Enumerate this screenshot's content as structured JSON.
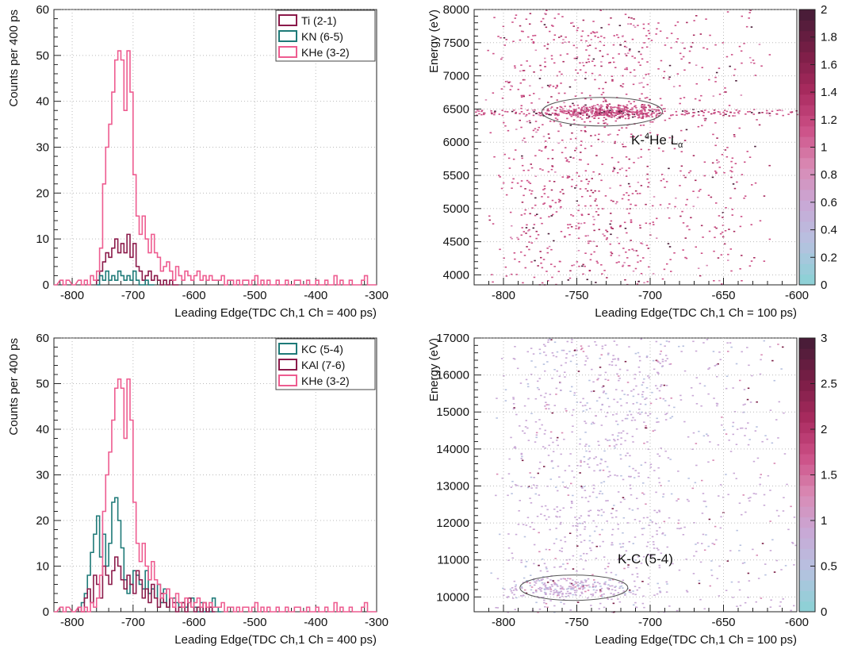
{
  "colors": {
    "pink": "#ee5c90",
    "maroon": "#8b1a4a",
    "teal": "#1e7a78",
    "palette": [
      "#8fd0d6",
      "#b7c1e0",
      "#c9a8d6",
      "#d98ab4",
      "#cc4f86",
      "#a82a5e",
      "#7a1e46",
      "#4a1c38"
    ]
  },
  "chart_data": [
    {
      "type": "line",
      "panel": "top-left",
      "xlabel": "Leading Edge(TDC Ch,1 Ch = 400 ps)",
      "ylabel": "Counts per 400 ps",
      "xlim": [
        -830,
        -300
      ],
      "ylim": [
        0,
        60
      ],
      "xticks": [
        -800,
        -700,
        -600,
        -500,
        -400,
        -300
      ],
      "yticks": [
        0,
        10,
        20,
        30,
        40,
        50,
        60
      ],
      "legend_position": "top-right",
      "series": [
        {
          "name": "Ti (2-1)",
          "color": "maroon",
          "x": [
            -760,
            -755,
            -750,
            -745,
            -740,
            -735,
            -730,
            -725,
            -720,
            -715,
            -710,
            -705,
            -700,
            -695,
            -690,
            -685,
            -680,
            -675,
            -670,
            -665,
            -660,
            -655,
            -650,
            -645,
            -640,
            -635,
            -630
          ],
          "values": [
            1,
            3,
            5,
            7,
            6,
            8,
            10,
            7,
            9,
            7,
            11,
            6,
            9,
            4,
            3,
            1,
            2,
            3,
            1,
            2,
            1,
            0,
            1,
            0,
            1,
            0,
            0
          ]
        },
        {
          "name": "KN (6-5)",
          "color": "teal",
          "x": [
            -760,
            -755,
            -750,
            -745,
            -740,
            -735,
            -730,
            -725,
            -720,
            -715,
            -710,
            -705,
            -700,
            -695,
            -690,
            -685,
            -680,
            -675,
            -670
          ],
          "values": [
            0,
            2,
            1,
            3,
            1,
            2,
            1,
            3,
            2,
            1,
            2,
            1,
            3,
            1,
            0,
            0,
            1,
            0,
            0
          ]
        },
        {
          "name": "KHe (3-2)",
          "color": "pink",
          "x": [
            -830,
            -820,
            -815,
            -810,
            -800,
            -790,
            -785,
            -780,
            -775,
            -770,
            -765,
            -760,
            -755,
            -750,
            -745,
            -740,
            -735,
            -730,
            -725,
            -720,
            -715,
            -710,
            -705,
            -700,
            -695,
            -690,
            -685,
            -680,
            -675,
            -670,
            -665,
            -660,
            -655,
            -650,
            -645,
            -640,
            -635,
            -630,
            -625,
            -620,
            -615,
            -610,
            -605,
            -600,
            -595,
            -590,
            -585,
            -580,
            -575,
            -570,
            -565,
            -560,
            -555,
            -550,
            -545,
            -540,
            -535,
            -530,
            -525,
            -520,
            -515,
            -510,
            -505,
            -500,
            -495,
            -490,
            -485,
            -480,
            -475,
            -470,
            -465,
            -460,
            -455,
            -450,
            -445,
            -440,
            -435,
            -430,
            -425,
            -420,
            -415,
            -410,
            -405,
            -400,
            -395,
            -390,
            -385,
            -380,
            -375,
            -370,
            -365,
            -360,
            -355,
            -350,
            -345,
            -340,
            -335,
            -330,
            -325,
            -320,
            -315,
            -310,
            -305
          ],
          "values": [
            0,
            1,
            0,
            1,
            0,
            1,
            0,
            1,
            0,
            2,
            1,
            3,
            8,
            22,
            30,
            35,
            42,
            49,
            51,
            49,
            38,
            51,
            42,
            24,
            15,
            11,
            15,
            10,
            7,
            11,
            7,
            6,
            3,
            4,
            5,
            3,
            1,
            4,
            2,
            1,
            3,
            2,
            1,
            2,
            3,
            1,
            2,
            1,
            2,
            1,
            1,
            1,
            2,
            0,
            1,
            1,
            0,
            1,
            0,
            1,
            1,
            0,
            1,
            2,
            0,
            1,
            0,
            1,
            0,
            0,
            1,
            0,
            0,
            1,
            0,
            0,
            1,
            1,
            0,
            0,
            1,
            0,
            0,
            1,
            0,
            0,
            1,
            0,
            0,
            2,
            0,
            1,
            0,
            0,
            1,
            0,
            0,
            0,
            1,
            2,
            0,
            0,
            0
          ]
        }
      ]
    },
    {
      "type": "heatmap",
      "panel": "top-right",
      "xlabel": "Leading Edge(TDC Ch,1 Ch = 100 ps)",
      "ylabel": "Energy (eV)",
      "xlim": [
        -820,
        -600
      ],
      "ylim": [
        3850,
        8000
      ],
      "xticks": [
        -800,
        -750,
        -700,
        -650,
        -600
      ],
      "yticks": [
        4000,
        4500,
        5000,
        5500,
        6000,
        6500,
        7000,
        7500,
        8000
      ],
      "zlim": [
        0,
        2
      ],
      "zticks": [
        "0",
        "0.2",
        "0.4",
        "0.6",
        "0.8",
        "1",
        "1.2",
        "1.4",
        "1.6",
        "1.8",
        "2"
      ],
      "annotation": {
        "text_main": "K-",
        "sup": "4",
        "text_tail": "He L",
        "sub": "α",
        "ellipse_center": [
          -730,
          6460
        ]
      },
      "seed": 13
    },
    {
      "type": "line",
      "panel": "bottom-left",
      "xlabel": "Leading Edge(TDC Ch,1 Ch = 400 ps)",
      "ylabel": "Counts per 400 ps",
      "xlim": [
        -830,
        -300
      ],
      "ylim": [
        0,
        60
      ],
      "xticks": [
        -800,
        -700,
        -600,
        -500,
        -400,
        -300
      ],
      "yticks": [
        0,
        10,
        20,
        30,
        40,
        50,
        60
      ],
      "legend_position": "top-right",
      "series": [
        {
          "name": "KC (5-4)",
          "color": "teal",
          "x": [
            -790,
            -785,
            -780,
            -775,
            -770,
            -765,
            -760,
            -755,
            -750,
            -745,
            -740,
            -735,
            -730,
            -725,
            -720,
            -715,
            -710,
            -705,
            -700,
            -695,
            -690,
            -685,
            -680,
            -675,
            -670,
            -665,
            -660,
            -655,
            -650,
            -645,
            -640,
            -635,
            -630,
            -625,
            -620,
            -615,
            -610,
            -605,
            -600,
            -595,
            -590,
            -585,
            -580,
            -575,
            -570,
            -565,
            -560
          ],
          "values": [
            1,
            2,
            4,
            8,
            13,
            17,
            21,
            12,
            17,
            10,
            15,
            24,
            25,
            20,
            14,
            7,
            4,
            6,
            9,
            8,
            6,
            5,
            9,
            4,
            5,
            3,
            6,
            2,
            5,
            1,
            3,
            3,
            2,
            1,
            2,
            1,
            2,
            3,
            1,
            0,
            2,
            0,
            1,
            0,
            3,
            1,
            0
          ]
        },
        {
          "name": "KAl (7-6)",
          "color": "maroon",
          "x": [
            -790,
            -785,
            -780,
            -775,
            -770,
            -765,
            -760,
            -755,
            -750,
            -745,
            -740,
            -735,
            -730,
            -725,
            -720,
            -715,
            -710,
            -705,
            -700,
            -695,
            -690,
            -685,
            -680,
            -675,
            -670,
            -665,
            -660,
            -655,
            -650,
            -645,
            -640,
            -635,
            -630,
            -625,
            -620,
            -615,
            -610,
            -605,
            -600,
            -595,
            -590,
            -585,
            -580,
            -575,
            -570
          ],
          "values": [
            1,
            0,
            3,
            5,
            2,
            8,
            6,
            3,
            10,
            8,
            6,
            9,
            12,
            10,
            7,
            5,
            8,
            6,
            4,
            9,
            7,
            3,
            5,
            2,
            6,
            3,
            1,
            4,
            2,
            1,
            3,
            2,
            0,
            1,
            2,
            0,
            3,
            1,
            0,
            1,
            0,
            2,
            0,
            1,
            0
          ]
        },
        {
          "name": "KHe (3-2)",
          "color": "pink",
          "x": [
            -830,
            -820,
            -815,
            -810,
            -800,
            -790,
            -785,
            -780,
            -775,
            -770,
            -765,
            -760,
            -755,
            -750,
            -745,
            -740,
            -735,
            -730,
            -725,
            -720,
            -715,
            -710,
            -705,
            -700,
            -695,
            -690,
            -685,
            -680,
            -675,
            -670,
            -665,
            -660,
            -655,
            -650,
            -645,
            -640,
            -635,
            -630,
            -625,
            -620,
            -615,
            -610,
            -605,
            -600,
            -595,
            -590,
            -585,
            -580,
            -575,
            -570,
            -565,
            -560,
            -555,
            -550,
            -545,
            -540,
            -535,
            -530,
            -525,
            -520,
            -515,
            -510,
            -505,
            -500,
            -495,
            -490,
            -485,
            -480,
            -475,
            -470,
            -465,
            -460,
            -455,
            -450,
            -445,
            -440,
            -435,
            -430,
            -425,
            -420,
            -415,
            -410,
            -405,
            -400,
            -395,
            -390,
            -385,
            -380,
            -375,
            -370,
            -365,
            -360,
            -355,
            -350,
            -345,
            -340,
            -335,
            -330,
            -325,
            -320,
            -315,
            -310,
            -305
          ],
          "values": [
            0,
            1,
            0,
            1,
            0,
            1,
            0,
            1,
            0,
            2,
            1,
            3,
            8,
            22,
            30,
            35,
            42,
            49,
            51,
            49,
            38,
            51,
            42,
            24,
            15,
            11,
            15,
            10,
            7,
            11,
            7,
            6,
            3,
            4,
            5,
            3,
            1,
            4,
            2,
            1,
            3,
            2,
            1,
            2,
            3,
            1,
            2,
            1,
            2,
            1,
            1,
            1,
            2,
            0,
            1,
            1,
            0,
            1,
            0,
            1,
            1,
            0,
            1,
            2,
            0,
            1,
            0,
            1,
            0,
            0,
            1,
            0,
            0,
            1,
            0,
            0,
            1,
            1,
            0,
            0,
            1,
            0,
            0,
            1,
            0,
            0,
            1,
            0,
            0,
            2,
            0,
            1,
            0,
            0,
            1,
            0,
            0,
            0,
            1,
            2,
            0,
            0,
            0
          ]
        }
      ]
    },
    {
      "type": "heatmap",
      "panel": "bottom-right",
      "xlabel": "Leading Edge(TDC Ch,1 Ch = 100 ps)",
      "ylabel": "Energy (eV)",
      "xlim": [
        -820,
        -600
      ],
      "ylim": [
        9600,
        17000
      ],
      "xticks": [
        -800,
        -750,
        -700,
        -650,
        -600
      ],
      "yticks": [
        10000,
        11000,
        12000,
        13000,
        14000,
        15000,
        16000,
        17000
      ],
      "zlim": [
        0,
        3
      ],
      "zticks": [
        "0",
        "0.5",
        "1",
        "1.5",
        "2",
        "2.5",
        "3"
      ],
      "annotation": {
        "text_main": "K-C (5-4)",
        "ellipse_center": [
          -752,
          10250
        ]
      },
      "seed": 29
    }
  ]
}
